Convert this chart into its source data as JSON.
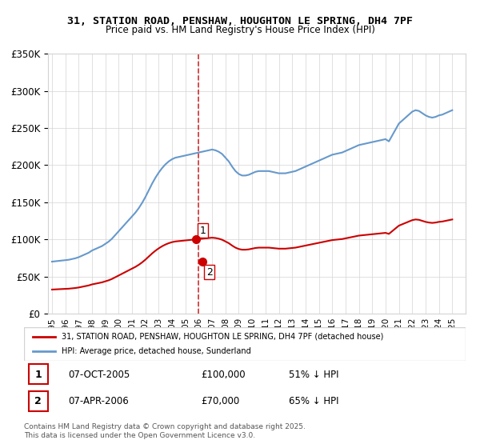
{
  "title": "31, STATION ROAD, PENSHAW, HOUGHTON LE SPRING, DH4 7PF",
  "subtitle": "Price paid vs. HM Land Registry's House Price Index (HPI)",
  "legend_property": "31, STATION ROAD, PENSHAW, HOUGHTON LE SPRING, DH4 7PF (detached house)",
  "legend_hpi": "HPI: Average price, detached house, Sunderland",
  "footer": "Contains HM Land Registry data © Crown copyright and database right 2025.\nThis data is licensed under the Open Government Licence v3.0.",
  "transactions": [
    {
      "num": 1,
      "date": "07-OCT-2005",
      "price": "£100,000",
      "hpi_rel": "51% ↓ HPI"
    },
    {
      "num": 2,
      "date": "07-APR-2006",
      "price": "£70,000",
      "hpi_rel": "65% ↓ HPI"
    }
  ],
  "property_color": "#cc0000",
  "hpi_color": "#6699cc",
  "dashed_vline_color": "#cc0000",
  "dashed_vline_x": 2006.0,
  "ylim": [
    0,
    350000
  ],
  "xlim_start": 1995,
  "xlim_end": 2026,
  "hpi_data_x": [
    1995.0,
    1995.25,
    1995.5,
    1995.75,
    1996.0,
    1996.25,
    1996.5,
    1996.75,
    1997.0,
    1997.25,
    1997.5,
    1997.75,
    1998.0,
    1998.25,
    1998.5,
    1998.75,
    1999.0,
    1999.25,
    1999.5,
    1999.75,
    2000.0,
    2000.25,
    2000.5,
    2000.75,
    2001.0,
    2001.25,
    2001.5,
    2001.75,
    2002.0,
    2002.25,
    2002.5,
    2002.75,
    2003.0,
    2003.25,
    2003.5,
    2003.75,
    2004.0,
    2004.25,
    2004.5,
    2004.75,
    2005.0,
    2005.25,
    2005.5,
    2005.75,
    2006.0,
    2006.25,
    2006.5,
    2006.75,
    2007.0,
    2007.25,
    2007.5,
    2007.75,
    2008.0,
    2008.25,
    2008.5,
    2008.75,
    2009.0,
    2009.25,
    2009.5,
    2009.75,
    2010.0,
    2010.25,
    2010.5,
    2010.75,
    2011.0,
    2011.25,
    2011.5,
    2011.75,
    2012.0,
    2012.25,
    2012.5,
    2012.75,
    2013.0,
    2013.25,
    2013.5,
    2013.75,
    2014.0,
    2014.25,
    2014.5,
    2014.75,
    2015.0,
    2015.25,
    2015.5,
    2015.75,
    2016.0,
    2016.25,
    2016.5,
    2016.75,
    2017.0,
    2017.25,
    2017.5,
    2017.75,
    2018.0,
    2018.25,
    2018.5,
    2018.75,
    2019.0,
    2019.25,
    2019.5,
    2019.75,
    2020.0,
    2020.25,
    2020.5,
    2020.75,
    2021.0,
    2021.25,
    2021.5,
    2021.75,
    2022.0,
    2022.25,
    2022.5,
    2022.75,
    2023.0,
    2023.25,
    2023.5,
    2023.75,
    2024.0,
    2024.25,
    2024.5,
    2024.75,
    2025.0
  ],
  "hpi_data_y": [
    70000,
    70500,
    71000,
    71500,
    72000,
    72500,
    73500,
    74500,
    76000,
    78000,
    80000,
    82000,
    85000,
    87000,
    89000,
    91000,
    94000,
    97000,
    101000,
    106000,
    111000,
    116000,
    121000,
    126000,
    131000,
    136000,
    142000,
    149000,
    157000,
    166000,
    175000,
    183000,
    190000,
    196000,
    201000,
    205000,
    208000,
    210000,
    211000,
    212000,
    213000,
    214000,
    215000,
    216000,
    217000,
    218000,
    219000,
    220000,
    221000,
    220000,
    218000,
    215000,
    210000,
    205000,
    198000,
    192000,
    188000,
    186000,
    186000,
    187000,
    189000,
    191000,
    192000,
    192000,
    192000,
    192000,
    191000,
    190000,
    189000,
    189000,
    189000,
    190000,
    191000,
    192000,
    194000,
    196000,
    198000,
    200000,
    202000,
    204000,
    206000,
    208000,
    210000,
    212000,
    214000,
    215000,
    216000,
    217000,
    219000,
    221000,
    223000,
    225000,
    227000,
    228000,
    229000,
    230000,
    231000,
    232000,
    233000,
    234000,
    235000,
    232000,
    240000,
    248000,
    256000,
    260000,
    264000,
    268000,
    272000,
    274000,
    273000,
    270000,
    267000,
    265000,
    264000,
    265000,
    267000,
    268000,
    270000,
    272000,
    274000
  ],
  "property_data_x": [
    2005.77,
    2006.27
  ],
  "property_data_y": [
    100000,
    70000
  ],
  "prop_marker_dates": [
    "07-OCT-2005",
    "07-APR-2006"
  ],
  "prop_indices": [
    1,
    2
  ]
}
